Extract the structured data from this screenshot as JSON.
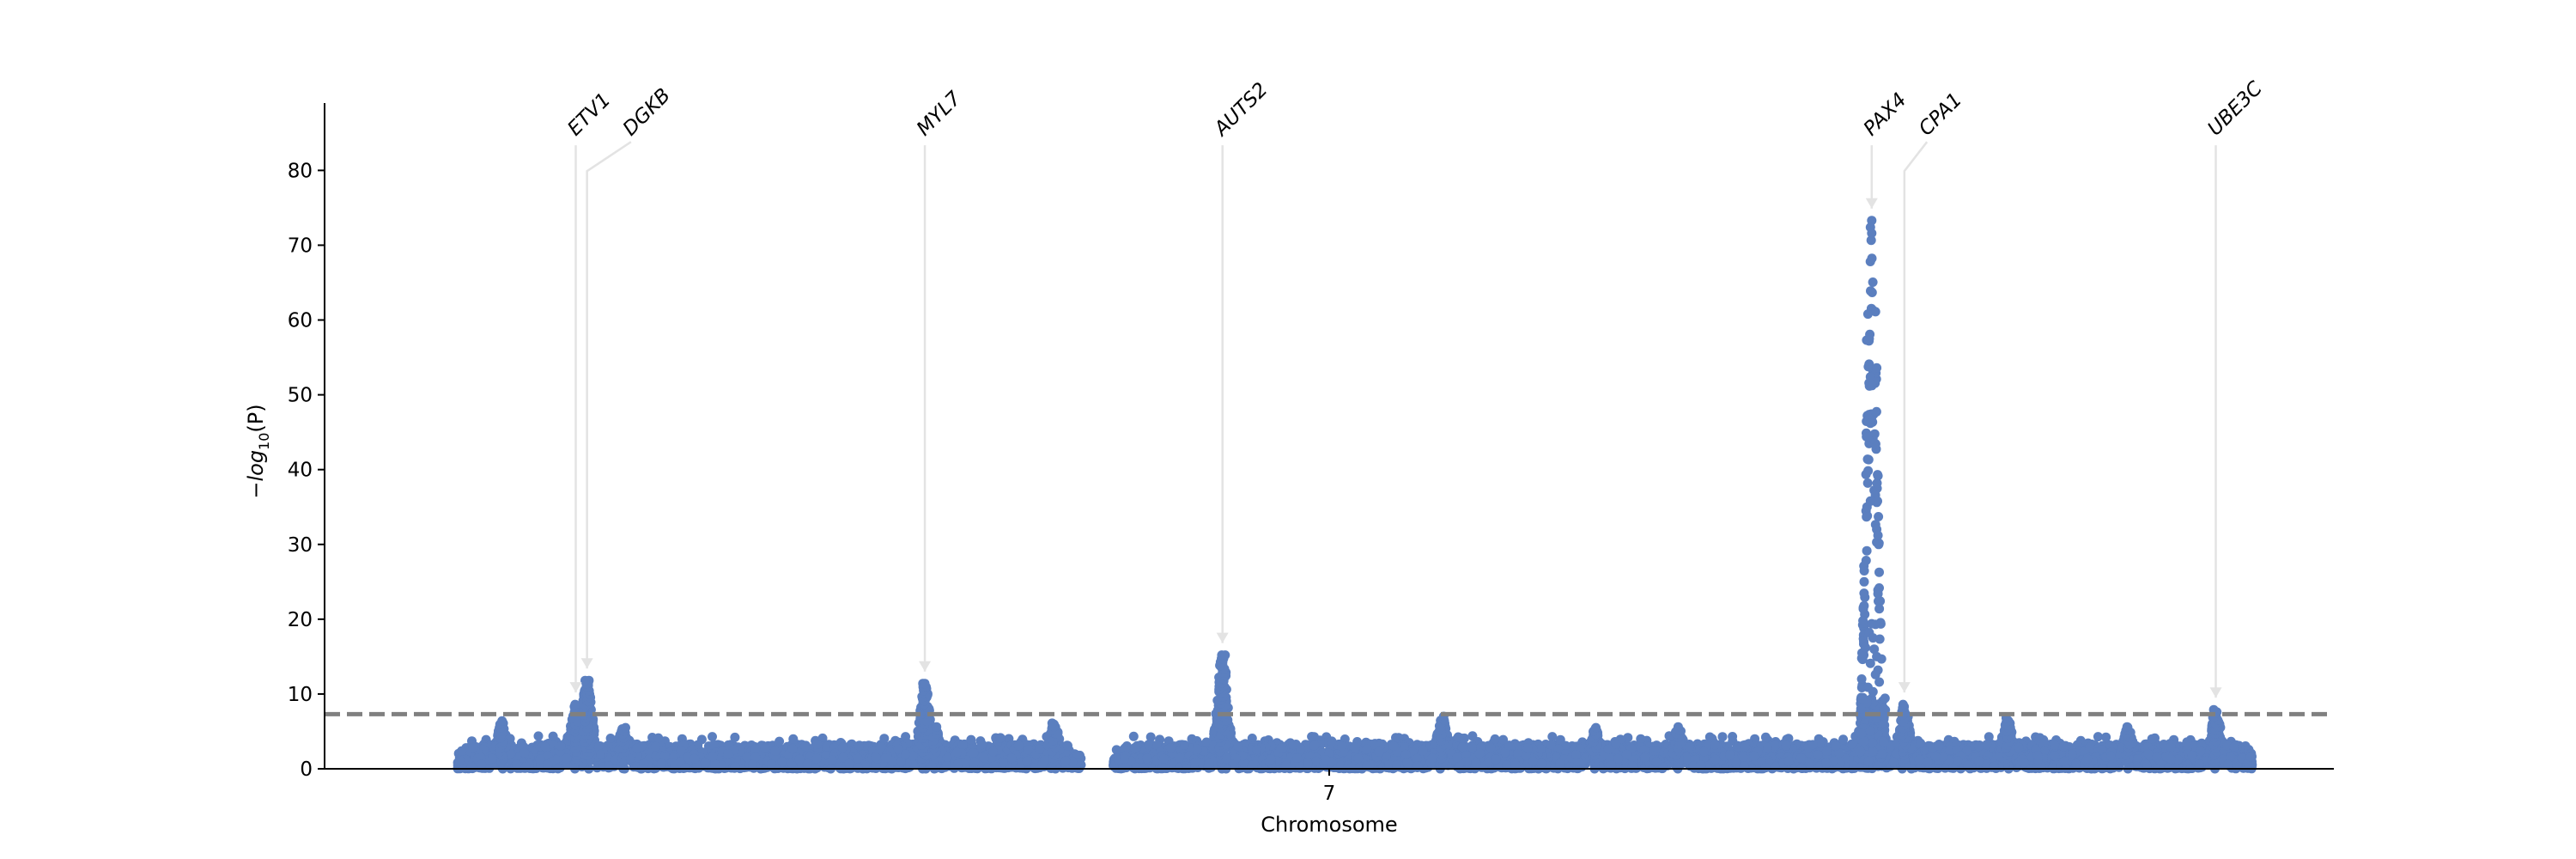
{
  "chart_data": {
    "type": "scatter",
    "title": "",
    "xlabel": "Chromosome",
    "ylabel_prefix": "−log",
    "ylabel_sub": "10",
    "ylabel_suffix": "(P)",
    "x_ticks": [
      {
        "label": "7",
        "x": 80
      }
    ],
    "xlim": [
      0,
      160
    ],
    "ylim": [
      0,
      89
    ],
    "yticks": [
      0,
      10,
      20,
      30,
      40,
      50,
      60,
      70,
      80
    ],
    "threshold": 7.3,
    "colors": {
      "points": "#5b7fbf",
      "threshold": "#808080",
      "arrow": "#e3e3e3"
    },
    "peaks": [
      {
        "x": 20.0,
        "y": 8.6
      },
      {
        "x": 20.9,
        "y": 11.8
      },
      {
        "x": 14.1,
        "y": 6.4
      },
      {
        "x": 23.8,
        "y": 5.5
      },
      {
        "x": 47.8,
        "y": 11.4
      },
      {
        "x": 48.6,
        "y": 5.6
      },
      {
        "x": 58.1,
        "y": 6.1
      },
      {
        "x": 71.5,
        "y": 15.2
      },
      {
        "x": 89.0,
        "y": 7.0
      },
      {
        "x": 101.2,
        "y": 5.5
      },
      {
        "x": 107.8,
        "y": 5.6
      },
      {
        "x": 123.2,
        "y": 73.3
      },
      {
        "x": 125.8,
        "y": 8.6
      },
      {
        "x": 134.0,
        "y": 6.8
      },
      {
        "x": 143.6,
        "y": 5.6
      },
      {
        "x": 150.6,
        "y": 7.9
      }
    ],
    "hits": [
      {
        "x": 123.2,
        "y": 73.3
      },
      {
        "x": 123.1,
        "y": 72.4
      },
      {
        "x": 123.2,
        "y": 71.6
      },
      {
        "x": 123.3,
        "y": 61.3
      },
      {
        "x": 123.5,
        "y": 61.1
      },
      {
        "x": 122.9,
        "y": 60.8
      },
      {
        "x": 123.6,
        "y": 53.6
      },
      {
        "x": 122.8,
        "y": 57.3
      },
      {
        "x": 123.0,
        "y": 57.5
      },
      {
        "x": 123.1,
        "y": 52.4
      },
      {
        "x": 123.0,
        "y": 46.8
      },
      {
        "x": 123.1,
        "y": 46.2
      },
      {
        "x": 123.1,
        "y": 35.8
      },
      {
        "x": 123.6,
        "y": 32.0
      },
      {
        "x": 123.6,
        "y": 30.3
      },
      {
        "x": 123.7,
        "y": 31.2
      },
      {
        "x": 122.6,
        "y": 25.0
      },
      {
        "x": 123.7,
        "y": 23.9
      },
      {
        "x": 123.7,
        "y": 23.4
      },
      {
        "x": 123.8,
        "y": 21.4
      },
      {
        "x": 122.5,
        "y": 19.8
      },
      {
        "x": 123.2,
        "y": 19.4
      },
      {
        "x": 123.5,
        "y": 19.3
      },
      {
        "x": 123.0,
        "y": 18.2
      },
      {
        "x": 123.3,
        "y": 17.5
      },
      {
        "x": 122.7,
        "y": 16.2
      },
      {
        "x": 123.4,
        "y": 16.0
      },
      {
        "x": 123.6,
        "y": 15.0
      },
      {
        "x": 123.1,
        "y": 14.1
      },
      {
        "x": 123.7,
        "y": 13.2
      },
      {
        "x": 123.5,
        "y": 12.6
      },
      {
        "x": 122.4,
        "y": 12.0
      },
      {
        "x": 123.8,
        "y": 11.6
      },
      {
        "x": 122.9,
        "y": 10.9
      },
      {
        "x": 123.3,
        "y": 10.3
      }
    ],
    "annotations": [
      {
        "gene": "ETV1",
        "point_x": 20.0,
        "point_y": 8.6,
        "label_x": 20.0,
        "label_y": 84.5
      },
      {
        "gene": "DGKB",
        "point_x": 20.9,
        "point_y": 11.8,
        "label_x": 24.4,
        "label_y": 84.5
      },
      {
        "gene": "MYL7",
        "point_x": 47.8,
        "point_y": 11.4,
        "label_x": 47.8,
        "label_y": 84.5
      },
      {
        "gene": "AUTS2",
        "point_x": 71.5,
        "point_y": 15.2,
        "label_x": 71.5,
        "label_y": 84.5
      },
      {
        "gene": "PAX4",
        "point_x": 123.2,
        "point_y": 73.3,
        "label_x": 123.2,
        "label_y": 84.5
      },
      {
        "gene": "CPA1",
        "point_x": 125.8,
        "point_y": 8.6,
        "label_x": 127.6,
        "label_y": 84.5
      },
      {
        "gene": "UBE3C",
        "point_x": 150.6,
        "point_y": 7.9,
        "label_x": 150.6,
        "label_y": 84.5
      }
    ]
  }
}
